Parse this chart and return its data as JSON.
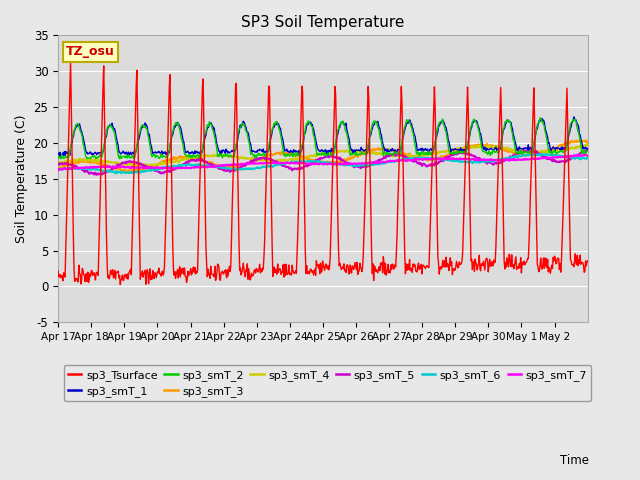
{
  "title": "SP3 Soil Temperature",
  "ylabel": "Soil Temperature (C)",
  "xlabel": "Time",
  "tz_label": "TZ_osu",
  "ylim": [
    -5,
    35
  ],
  "yticks": [
    -5,
    0,
    5,
    10,
    15,
    20,
    25,
    30,
    35
  ],
  "x_tick_labels": [
    "Apr 17",
    "Apr 18",
    "Apr 19",
    "Apr 20",
    "Apr 21",
    "Apr 22",
    "Apr 23",
    "Apr 24",
    "Apr 25",
    "Apr 26",
    "Apr 27",
    "Apr 28",
    "Apr 29",
    "Apr 30",
    "May 1",
    "May 2"
  ],
  "legend_entries": [
    {
      "label": "sp3_Tsurface",
      "color": "#ff0000"
    },
    {
      "label": "sp3_smT_1",
      "color": "#0000cc"
    },
    {
      "label": "sp3_smT_2",
      "color": "#00cc00"
    },
    {
      "label": "sp3_smT_3",
      "color": "#ff9900"
    },
    {
      "label": "sp3_smT_4",
      "color": "#cccc00"
    },
    {
      "label": "sp3_smT_5",
      "color": "#cc00cc"
    },
    {
      "label": "sp3_smT_6",
      "color": "#00cccc"
    },
    {
      "label": "sp3_smT_7",
      "color": "#ff00ff"
    }
  ],
  "fig_bg": "#e8e8e8",
  "ax_bg": "#dcdcdc"
}
